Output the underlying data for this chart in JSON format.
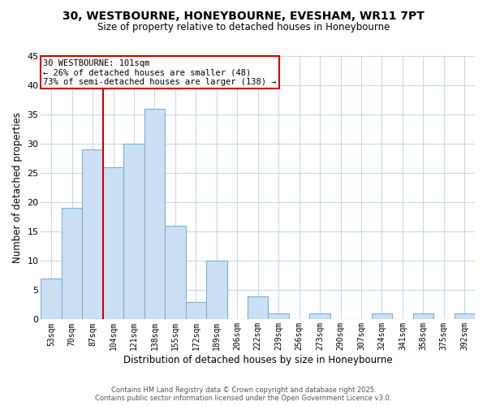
{
  "title": "30, WESTBOURNE, HONEYBOURNE, EVESHAM, WR11 7PT",
  "subtitle": "Size of property relative to detached houses in Honeybourne",
  "xlabel": "Distribution of detached houses by size in Honeybourne",
  "ylabel": "Number of detached properties",
  "bar_color": "#cce0f5",
  "bar_edge_color": "#7bafd4",
  "background_color": "#ffffff",
  "grid_color": "#c8d8ec",
  "categories": [
    "53sqm",
    "70sqm",
    "87sqm",
    "104sqm",
    "121sqm",
    "138sqm",
    "155sqm",
    "172sqm",
    "189sqm",
    "206sqm",
    "222sqm",
    "239sqm",
    "256sqm",
    "273sqm",
    "290sqm",
    "307sqm",
    "324sqm",
    "341sqm",
    "358sqm",
    "375sqm",
    "392sqm"
  ],
  "values": [
    7,
    19,
    29,
    26,
    30,
    36,
    16,
    3,
    10,
    0,
    4,
    1,
    0,
    1,
    0,
    0,
    1,
    0,
    1,
    0,
    1
  ],
  "ylim": [
    0,
    45
  ],
  "yticks": [
    0,
    5,
    10,
    15,
    20,
    25,
    30,
    35,
    40,
    45
  ],
  "property_line_index": 3,
  "annotation_title": "30 WESTBOURNE: 101sqm",
  "annotation_line1": "← 26% of detached houses are smaller (48)",
  "annotation_line2": "73% of semi-detached houses are larger (138) →",
  "annotation_box_color": "#ffffff",
  "annotation_box_edge": "#cc0000",
  "property_line_color": "#cc0000",
  "footer1": "Contains HM Land Registry data © Crown copyright and database right 2025.",
  "footer2": "Contains public sector information licensed under the Open Government Licence v3.0."
}
